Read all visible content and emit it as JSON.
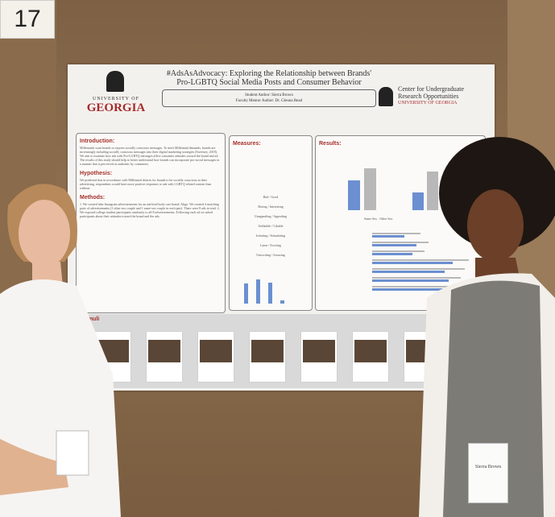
{
  "sign_number": "17",
  "poster": {
    "left_logo": {
      "line1": "UNIVERSITY OF",
      "line2": "GEORGIA"
    },
    "title_line1": "#AdsAsAdvocacy: Exploring the Relationship between Brands'",
    "title_line2": "Pro-LGBTQ Social Media Posts and Consumer Behavior",
    "student_author": "Student Author: Sierra Brown",
    "faculty_author": "Faculty Mentor Author: Dr. Glenna Read",
    "right_logo": {
      "line1": "Center for Undergraduate",
      "line2": "Research Opportunities",
      "line3": "UNIVERSITY OF GEORGIA"
    },
    "intro": {
      "heading": "Introduction:",
      "text": "Millennials want brands to express socially conscious messages. To meet Millennial demands, brands are increasingly including socially conscious messages into their digital marketing strategies (Sweeney, 2018). We aim to examine how ads with Pro-LGBTQ messages affect consumer attitudes toward the brand and ad. The results of this study should help to better understand how brands can incorporate pro-social messages in a manner that is perceived as authentic by consumers."
    },
    "hypothesis": {
      "heading": "Hypothesis:",
      "text": "We predicted that in accordance with Millennial desires for brands to be socially conscious in their advertising, respondents would have more positive responses to ads with LGBTQ related content than without."
    },
    "methods": {
      "heading": "Methods:",
      "text": "1. We created fake Instagram advertisements for an artificial body care brand, Aligo. We created 4 matching pairs of advertisements (1 other-sex couple and 1 same-sex couple in each pair). There were 8 ads in total. 2. We exposed college student participants randomly to all 8 advertisements. Following each ad we asked participants about their attitudes toward the brand and the ads."
    },
    "measures": {
      "heading": "Measures:",
      "scale": [
        "Bad / Good",
        "Boring / Interesting",
        "Unappealing / Appealing",
        "Unlikable / Likable",
        "Irritating / Stimulating",
        "Lame / Exciting",
        "Unexciting / Arousing"
      ]
    },
    "results": {
      "heading": "Results:",
      "legend": [
        "Same Sex",
        "Other Sex"
      ]
    },
    "stimuli_heading": "Stimuli"
  },
  "badge_name": "Sierra Brown",
  "colors": {
    "uga_red": "#a52a2a",
    "bar_blue": "#6b8fd0",
    "bar_gray": "#b8b8b8"
  }
}
